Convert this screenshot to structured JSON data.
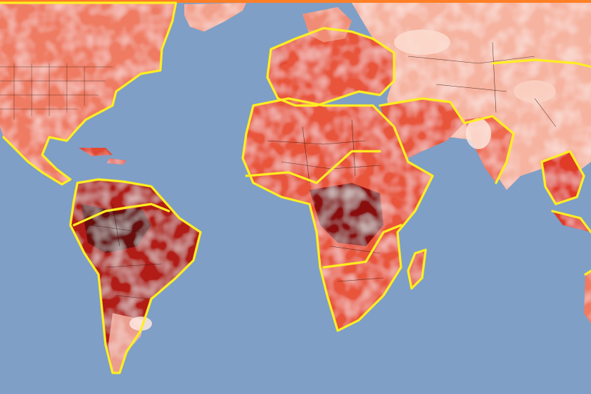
{
  "map": {
    "projection": "equirectangular",
    "ocean_color": "#7f9fc6",
    "land_palette": [
      "#fbe6de",
      "#f6b19d",
      "#f07a60",
      "#e24a32",
      "#c42416",
      "#951010",
      "#6a0808"
    ],
    "region_border_color": "#ffee22",
    "country_border_color": "#2a1208",
    "top_edge_color": "#ff7f27"
  }
}
